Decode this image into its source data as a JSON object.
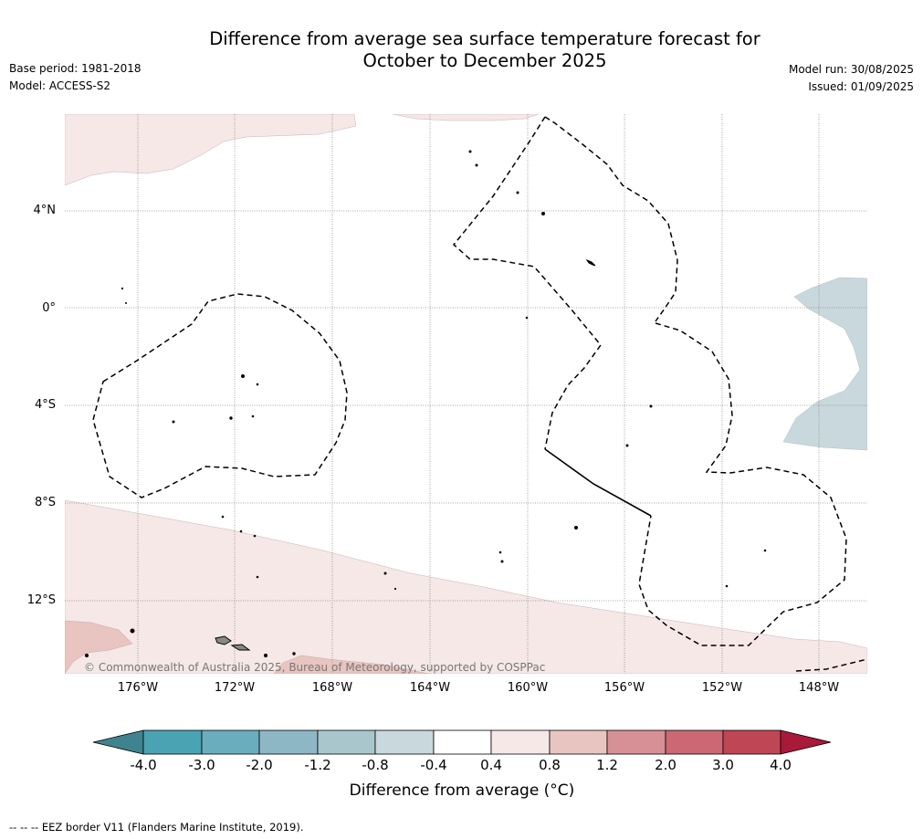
{
  "title_line1": "Difference from average sea surface temperature forecast for",
  "title_line2": "October to December 2025",
  "meta": {
    "base_period": "Base period: 1981-2018",
    "model": "Model: ACCESS-S2",
    "model_run": "Model run: 30/08/2025",
    "issued": "Issued: 01/09/2025"
  },
  "map": {
    "lat_labels": [
      "4°N",
      "0°",
      "4°S",
      "8°S",
      "12°S"
    ],
    "lon_labels": [
      "176°W",
      "172°W",
      "168°W",
      "164°W",
      "160°W",
      "156°W",
      "152°W",
      "148°W"
    ],
    "copyright": "© Commonwealth of Australia 2025, Bureau of Meteorology, supported by COSPPac",
    "colors": {
      "warm_0_4_0_8": "#f5e8e7",
      "warm_0_8_1_2": "#e8c5c0",
      "cool_neg0_8_neg0_4": "#c9d8dc",
      "eez_border": "#000000"
    }
  },
  "colorbar": {
    "ticks": [
      "-4.0",
      "-3.0",
      "-2.0",
      "-1.2",
      "-0.8",
      "-0.4",
      "0.4",
      "0.8",
      "1.2",
      "2.0",
      "3.0",
      "4.0"
    ],
    "colors": [
      "#3f838f",
      "#4aa3b3",
      "#6aaebd",
      "#8db7c4",
      "#a9c6cd",
      "#c9d8dc",
      "#ffffff",
      "#f5e8e7",
      "#e8c5c0",
      "#d79196",
      "#cb6874",
      "#bf4655",
      "#a8193a"
    ],
    "label": "Difference from average (°C)"
  },
  "footnote": "--  --  -- EEZ border V11 (Flanders Marine Institute, 2019)."
}
